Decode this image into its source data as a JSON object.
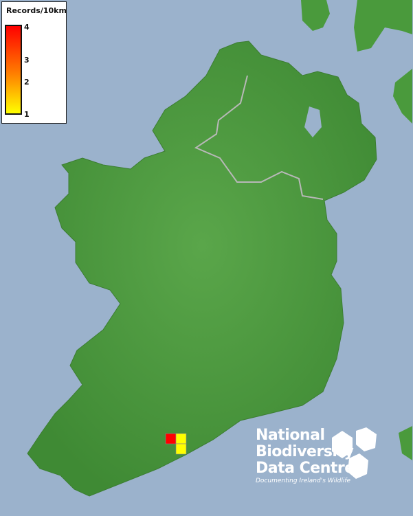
{
  "legend": {
    "title": "Records/10km",
    "ticks": [
      "4",
      "3",
      "2",
      "1"
    ],
    "colors": {
      "max": "#ff0000",
      "mid": "#ff8000",
      "min": "#ffff00"
    }
  },
  "records": [
    {
      "grid": "square-1",
      "value": 4,
      "color": "#ff0000"
    },
    {
      "grid": "square-2",
      "value": 1,
      "color": "#ffff00"
    },
    {
      "grid": "square-3",
      "value": 1,
      "color": "#ffff00"
    }
  ],
  "colors": {
    "sea": "#9bb2cc",
    "land": "#4e9a40",
    "border": "#b0b0b0"
  },
  "logo": {
    "line1": "National",
    "line2": "Biodiversity",
    "line3": "Data Centre",
    "tagline": "Documenting Ireland's Wildlife"
  }
}
